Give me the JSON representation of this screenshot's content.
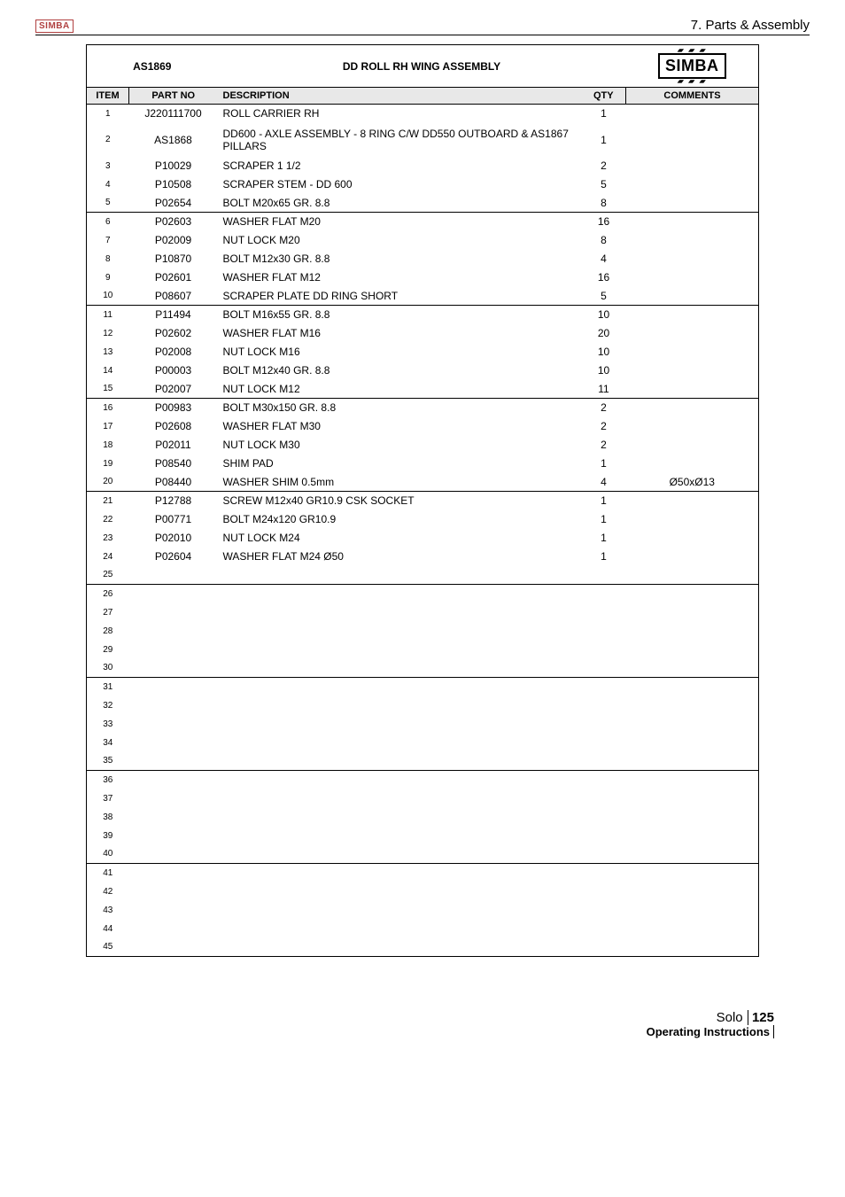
{
  "header": {
    "small_logo": "SIMBA",
    "section": "7. Parts & Assembly"
  },
  "assembly": {
    "code": "AS1869",
    "title": "DD ROLL RH WING ASSEMBLY",
    "brand_accent_top": "▰ ▰ ▰",
    "brand": "SIMBA",
    "brand_accent_bot": "▰ ▰ ▰"
  },
  "columns": {
    "item": "ITEM",
    "part": "PART NO",
    "desc": "DESCRIPTION",
    "qty": "QTY",
    "comm": "COMMENTS"
  },
  "rows": [
    {
      "i": "1",
      "p": "J220111700",
      "d": "ROLL CARRIER RH",
      "q": "1",
      "c": "",
      "sep": false,
      "tall": false
    },
    {
      "i": "2",
      "p": "AS1868",
      "d": "DD600 - AXLE ASSEMBLY - 8 RING C/W DD550 OUTBOARD & AS1867 PILLARS",
      "q": "1",
      "c": "",
      "sep": false,
      "tall": true
    },
    {
      "i": "3",
      "p": "P10029",
      "d": "SCRAPER 1 1/2",
      "q": "2",
      "c": "",
      "sep": false,
      "tall": false
    },
    {
      "i": "4",
      "p": "P10508",
      "d": "SCRAPER STEM - DD 600",
      "q": "5",
      "c": "",
      "sep": false,
      "tall": false
    },
    {
      "i": "5",
      "p": "P02654",
      "d": "BOLT M20x65 GR. 8.8",
      "q": "8",
      "c": "",
      "sep": false,
      "tall": false
    },
    {
      "i": "6",
      "p": "P02603",
      "d": "WASHER FLAT M20",
      "q": "16",
      "c": "",
      "sep": true,
      "tall": false
    },
    {
      "i": "7",
      "p": "P02009",
      "d": "NUT LOCK M20",
      "q": "8",
      "c": "",
      "sep": false,
      "tall": false
    },
    {
      "i": "8",
      "p": "P10870",
      "d": "BOLT M12x30 GR. 8.8",
      "q": "4",
      "c": "",
      "sep": false,
      "tall": false
    },
    {
      "i": "9",
      "p": "P02601",
      "d": "WASHER FLAT M12",
      "q": "16",
      "c": "",
      "sep": false,
      "tall": false
    },
    {
      "i": "10",
      "p": "P08607",
      "d": "SCRAPER PLATE DD RING SHORT",
      "q": "5",
      "c": "",
      "sep": false,
      "tall": false
    },
    {
      "i": "11",
      "p": "P11494",
      "d": "BOLT M16x55 GR. 8.8",
      "q": "10",
      "c": "",
      "sep": true,
      "tall": false
    },
    {
      "i": "12",
      "p": "P02602",
      "d": "WASHER FLAT M16",
      "q": "20",
      "c": "",
      "sep": false,
      "tall": false
    },
    {
      "i": "13",
      "p": "P02008",
      "d": "NUT LOCK M16",
      "q": "10",
      "c": "",
      "sep": false,
      "tall": false
    },
    {
      "i": "14",
      "p": "P00003",
      "d": "BOLT M12x40 GR. 8.8",
      "q": "10",
      "c": "",
      "sep": false,
      "tall": false
    },
    {
      "i": "15",
      "p": "P02007",
      "d": "NUT LOCK M12",
      "q": "11",
      "c": "",
      "sep": false,
      "tall": false
    },
    {
      "i": "16",
      "p": "P00983",
      "d": "BOLT M30x150 GR. 8.8",
      "q": "2",
      "c": "",
      "sep": true,
      "tall": false
    },
    {
      "i": "17",
      "p": "P02608",
      "d": "WASHER FLAT M30",
      "q": "2",
      "c": "",
      "sep": false,
      "tall": false
    },
    {
      "i": "18",
      "p": "P02011",
      "d": "NUT LOCK M30",
      "q": "2",
      "c": "",
      "sep": false,
      "tall": false
    },
    {
      "i": "19",
      "p": "P08540",
      "d": "SHIM PAD",
      "q": "1",
      "c": "",
      "sep": false,
      "tall": false
    },
    {
      "i": "20",
      "p": "P08440",
      "d": "WASHER SHIM 0.5mm",
      "q": "4",
      "c": "Ø50xØ13",
      "sep": false,
      "tall": false
    },
    {
      "i": "21",
      "p": "P12788",
      "d": "SCREW M12x40 GR10.9 CSK SOCKET",
      "q": "1",
      "c": "",
      "sep": true,
      "tall": false
    },
    {
      "i": "22",
      "p": "P00771",
      "d": "BOLT M24x120 GR10.9",
      "q": "1",
      "c": "",
      "sep": false,
      "tall": false
    },
    {
      "i": "23",
      "p": "P02010",
      "d": "NUT LOCK M24",
      "q": "1",
      "c": "",
      "sep": false,
      "tall": false
    },
    {
      "i": "24",
      "p": "P02604",
      "d": "WASHER FLAT M24 Ø50",
      "q": "1",
      "c": "",
      "sep": false,
      "tall": false
    },
    {
      "i": "25",
      "p": "",
      "d": "",
      "q": "",
      "c": "",
      "sep": false,
      "tall": false
    },
    {
      "i": "26",
      "p": "",
      "d": "",
      "q": "",
      "c": "",
      "sep": true,
      "tall": false
    },
    {
      "i": "27",
      "p": "",
      "d": "",
      "q": "",
      "c": "",
      "sep": false,
      "tall": false
    },
    {
      "i": "28",
      "p": "",
      "d": "",
      "q": "",
      "c": "",
      "sep": false,
      "tall": false
    },
    {
      "i": "29",
      "p": "",
      "d": "",
      "q": "",
      "c": "",
      "sep": false,
      "tall": false
    },
    {
      "i": "30",
      "p": "",
      "d": "",
      "q": "",
      "c": "",
      "sep": false,
      "tall": false
    },
    {
      "i": "31",
      "p": "",
      "d": "",
      "q": "",
      "c": "",
      "sep": true,
      "tall": false
    },
    {
      "i": "32",
      "p": "",
      "d": "",
      "q": "",
      "c": "",
      "sep": false,
      "tall": false
    },
    {
      "i": "33",
      "p": "",
      "d": "",
      "q": "",
      "c": "",
      "sep": false,
      "tall": false
    },
    {
      "i": "34",
      "p": "",
      "d": "",
      "q": "",
      "c": "",
      "sep": false,
      "tall": false
    },
    {
      "i": "35",
      "p": "",
      "d": "",
      "q": "",
      "c": "",
      "sep": false,
      "tall": false
    },
    {
      "i": "36",
      "p": "",
      "d": "",
      "q": "",
      "c": "",
      "sep": true,
      "tall": false
    },
    {
      "i": "37",
      "p": "",
      "d": "",
      "q": "",
      "c": "",
      "sep": false,
      "tall": false
    },
    {
      "i": "38",
      "p": "",
      "d": "",
      "q": "",
      "c": "",
      "sep": false,
      "tall": false
    },
    {
      "i": "39",
      "p": "",
      "d": "",
      "q": "",
      "c": "",
      "sep": false,
      "tall": false
    },
    {
      "i": "40",
      "p": "",
      "d": "",
      "q": "",
      "c": "",
      "sep": false,
      "tall": false
    },
    {
      "i": "41",
      "p": "",
      "d": "",
      "q": "",
      "c": "",
      "sep": true,
      "tall": false
    },
    {
      "i": "42",
      "p": "",
      "d": "",
      "q": "",
      "c": "",
      "sep": false,
      "tall": false
    },
    {
      "i": "43",
      "p": "",
      "d": "",
      "q": "",
      "c": "",
      "sep": false,
      "tall": false
    },
    {
      "i": "44",
      "p": "",
      "d": "",
      "q": "",
      "c": "",
      "sep": false,
      "tall": false
    },
    {
      "i": "45",
      "p": "",
      "d": "",
      "q": "",
      "c": "",
      "sep": false,
      "tall": false
    }
  ],
  "footer": {
    "product": "Solo",
    "page": "125",
    "caption": "Operating Instructions"
  }
}
